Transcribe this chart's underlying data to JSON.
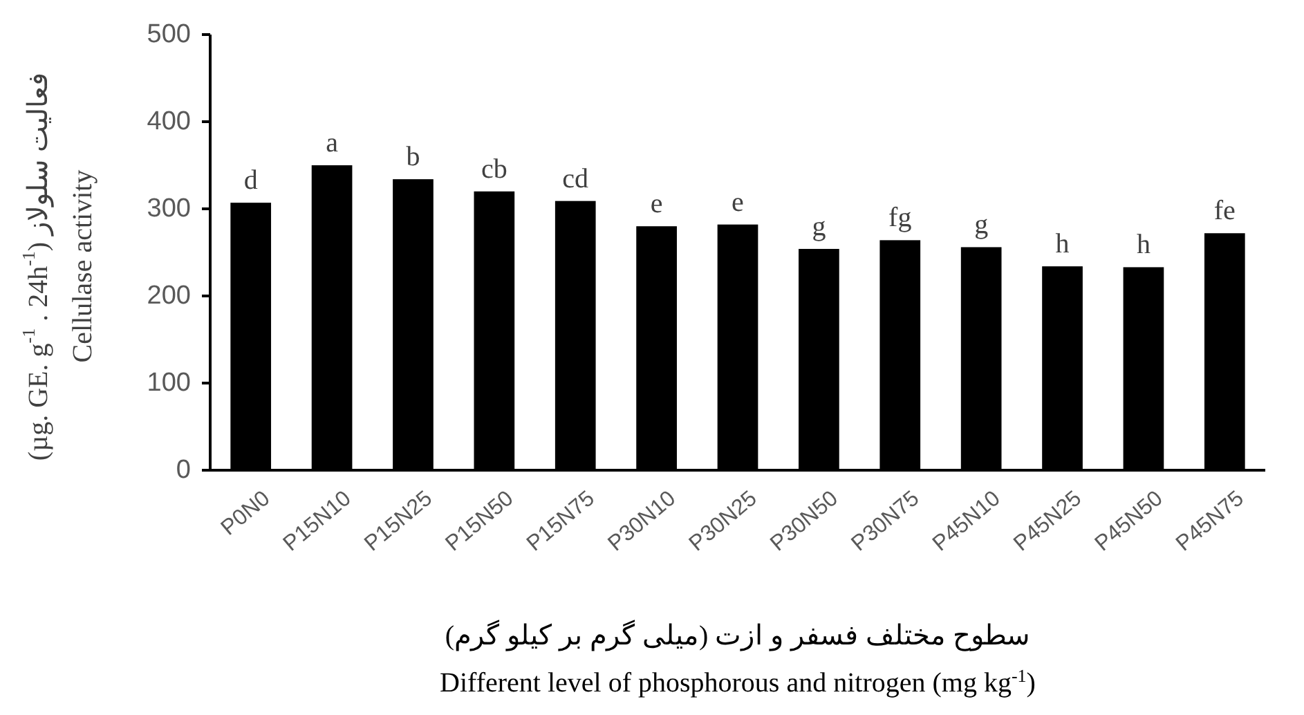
{
  "chart_data": {
    "type": "bar",
    "categories": [
      "P0N0",
      "P15N10",
      "P15N25",
      "P15N50",
      "P15N75",
      "P30N10",
      "P30N25",
      "P30N50",
      "P30N75",
      "P45N10",
      "P45N25",
      "P45N50",
      "P45N75"
    ],
    "values": [
      307,
      350,
      334,
      320,
      309,
      280,
      282,
      254,
      264,
      256,
      234,
      233,
      272
    ],
    "color": "#000000",
    "value_labels": [
      "d",
      "a",
      "b",
      "cb",
      "cd",
      "e",
      "e",
      "g",
      "fg",
      "g",
      "h",
      "h",
      "fe"
    ],
    "ylim": [
      0,
      500
    ],
    "yticks": [
      0,
      100,
      200,
      300,
      400,
      500
    ],
    "ylabel": "(µg. GE. g$^{-1}$ . 24h$^{-1}$) فعالیت سلولاز\nCellulase activity",
    "xlabel": "سطوح مختلف فسفر و ازت (میلی گرم بر کیلو گرم)\nDifferent level of phosphorous and nitrogen (mg kg$^{-1}$)",
    "grid": false
  }
}
